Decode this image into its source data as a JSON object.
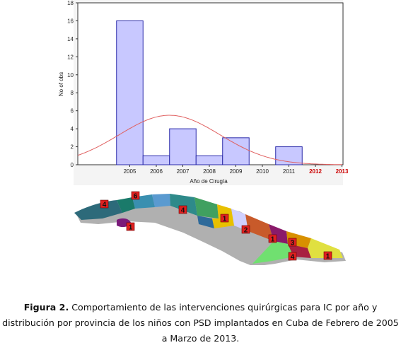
{
  "chart_data": {
    "type": "bar",
    "categories": [
      "2005",
      "2006",
      "2007",
      "2008",
      "2009",
      "2010",
      "2011",
      "2012",
      "2013"
    ],
    "highlight_categories": [
      "2012",
      "2013"
    ],
    "values": [
      16,
      1,
      4,
      1,
      3,
      0,
      2,
      0,
      0
    ],
    "xlabel": "Año de Cirugía",
    "ylabel": "No of obs",
    "ylim": [
      0,
      18
    ],
    "yticks": [
      0,
      2,
      4,
      6,
      8,
      10,
      12,
      14,
      16,
      18
    ],
    "grid": false,
    "overlay": {
      "type": "normal-curve",
      "peak_category": "2006.5",
      "peak_value": 5.5
    },
    "colors": {
      "bar_fill": "#c8c8ff",
      "bar_stroke": "#2a2aaa",
      "curve": "#e06060",
      "highlight_tick": "#cc0000"
    }
  },
  "map": {
    "provinces": [
      {
        "label": "4",
        "color": "#2d6a7a"
      },
      {
        "label": "6",
        "color": "#3a8fb0"
      },
      {
        "label": "1",
        "color": "#7a1a7a"
      },
      {
        "label": "4",
        "color": "#2e8a8a"
      },
      {
        "label": "1",
        "color": "#e8c000"
      },
      {
        "label": "2",
        "color": "#c85a2a"
      },
      {
        "label": "1",
        "color": "#8a1a6a"
      },
      {
        "label": "3",
        "color": "#d89000"
      },
      {
        "label": "4",
        "color": "#a82040"
      },
      {
        "label": "1",
        "color": "#e8a020"
      }
    ]
  },
  "caption": {
    "bold": "Figura 2.",
    "text": " Comportamiento de las intervenciones quirúrgicas para IC por año y distribución por provincia de los niños con PSD implantados en Cuba de Febrero de 2005 a Marzo de 2013."
  }
}
